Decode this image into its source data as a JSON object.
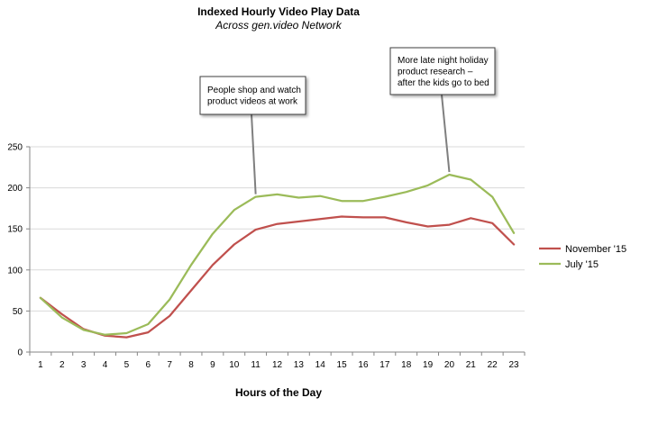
{
  "chart_data": {
    "type": "line",
    "title": "Indexed Hourly Video Play Data",
    "subtitle": "Across gen.video Network",
    "xlabel": "Hours of the Day",
    "ylabel": "",
    "x": [
      1,
      2,
      3,
      4,
      5,
      6,
      7,
      8,
      9,
      10,
      11,
      12,
      13,
      14,
      15,
      16,
      17,
      18,
      19,
      20,
      21,
      22,
      23
    ],
    "ylim": [
      0,
      250
    ],
    "yticks": [
      0,
      50,
      100,
      150,
      200,
      250
    ],
    "grid": true,
    "legend_position": "right",
    "series": [
      {
        "name": "November '15",
        "color": "#c0504d",
        "values": [
          66,
          46,
          28,
          20,
          18,
          24,
          44,
          75,
          106,
          131,
          149,
          156,
          159,
          162,
          165,
          164,
          164,
          158,
          153,
          155,
          163,
          157,
          131
        ]
      },
      {
        "name": "July '15",
        "color": "#9bbb59",
        "values": [
          66,
          42,
          27,
          21,
          23,
          34,
          64,
          106,
          144,
          173,
          189,
          192,
          188,
          190,
          184,
          184,
          189,
          195,
          203,
          216,
          210,
          189,
          145
        ]
      }
    ],
    "annotations": [
      {
        "lines": [
          "People shop and watch",
          "product videos at work"
        ],
        "target_x": 11,
        "target_series": "July '15"
      },
      {
        "lines": [
          "More late night holiday",
          "product research –",
          "after the kids go to bed"
        ],
        "target_x": 20,
        "target_series": "July '15"
      }
    ]
  }
}
